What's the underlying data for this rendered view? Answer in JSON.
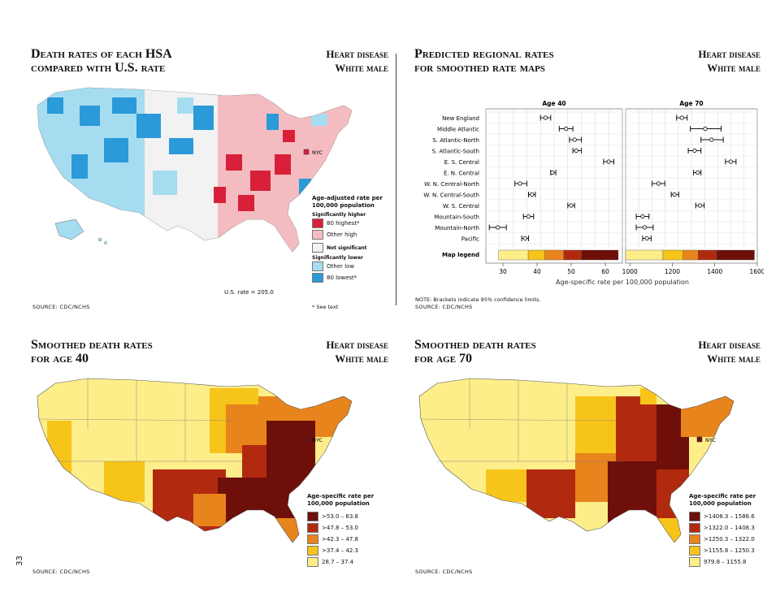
{
  "page_number": "33",
  "panels": {
    "tl": {
      "title_line1": "Death rates of each HSA",
      "title_line2": "compared with U.S. rate",
      "disease": "Heart disease",
      "group": "White male",
      "nyc_label": "NYC",
      "legend_title": "Age-adjusted rate per 100,000 population",
      "legend_sig_higher": "Significantly higher",
      "legend_items_higher": [
        {
          "label": "80 highest*",
          "color": "#d8203a"
        },
        {
          "label": "Other high",
          "color": "#f4bcc0"
        }
      ],
      "legend_not_sig": {
        "label": "Not significant",
        "color": "#f2f2f2"
      },
      "legend_sig_lower": "Significantly lower",
      "legend_items_lower": [
        {
          "label": "Other low",
          "color": "#a6dcef"
        },
        {
          "label": "80 lowest*",
          "color": "#2a9ad8"
        }
      ],
      "us_rate": "U.S. rate = 205.0",
      "footnote": "* See text",
      "source": "SOURCE: CDC/NCHS"
    },
    "tr": {
      "title_line1": "Predicted regional rates",
      "title_line2": "for smoothed rate maps",
      "disease": "Heart disease",
      "group": "White male",
      "note": "NOTE: Brackets indicate 95% confidence limits.",
      "source": "SOURCE: CDC/NCHS"
    },
    "bl": {
      "title_line1": "Smoothed death rates",
      "title_line2": "for age 40",
      "disease": "Heart disease",
      "group": "White male",
      "nyc_label": "NYC",
      "legend_title": "Age-specific rate per 100,000 population",
      "legend_items": [
        {
          "label": ">53.0 – 63.8",
          "color": "#6e0f0a"
        },
        {
          "label": ">47.8 – 53.0",
          "color": "#b12a10"
        },
        {
          "label": ">42.3 – 47.8",
          "color": "#e8841c"
        },
        {
          "label": ">37.4 – 42.3",
          "color": "#f7c41a"
        },
        {
          "label": "28.7 – 37.4",
          "color": "#fdee8a"
        }
      ],
      "source": "SOURCE: CDC/NCHS"
    },
    "br": {
      "title_line1": "Smoothed death rates",
      "title_line2": "for age 70",
      "disease": "Heart disease",
      "group": "White male",
      "nyc_label": "NYC",
      "legend_title": "Age-specific rate per 100,000 population",
      "legend_items": [
        {
          "label": ">1408.3 – 1586.6",
          "color": "#6e0f0a"
        },
        {
          "label": ">1322.0 – 1408.3",
          "color": "#b12a10"
        },
        {
          "label": ">1250.3 – 1322.0",
          "color": "#e8841c"
        },
        {
          "label": ">1155.8 – 1250.3",
          "color": "#f7c41a"
        },
        {
          "label": "979.8 – 1155.8",
          "color": "#fdee8a"
        }
      ],
      "source": "SOURCE: CDC/NCHS"
    }
  },
  "chart_data": {
    "type": "scatter",
    "xlabel": "Age-specific rate per 100,000 population",
    "categories": [
      "New England",
      "Middle Atlantic",
      "S. Atlantic-North",
      "S. Atlantic-South",
      "E. S. Central",
      "E. N. Central",
      "W. N. Central-North",
      "W. N. Central-South",
      "W. S. Central",
      "Mountain-South",
      "Mountain-North",
      "Pacific"
    ],
    "map_legend_label": "Map legend",
    "panels": [
      {
        "title": "Age 40",
        "xlim": [
          25,
          65
        ],
        "xticks": [
          30,
          40,
          50,
          60
        ],
        "points": [
          {
            "value": 42.5,
            "low": 41,
            "high": 44
          },
          {
            "value": 48.5,
            "low": 46.5,
            "high": 50.5
          },
          {
            "value": 51,
            "low": 49.5,
            "high": 53
          },
          {
            "value": 51.5,
            "low": 50.5,
            "high": 53
          },
          {
            "value": 61,
            "low": 59.5,
            "high": 62.5
          },
          {
            "value": 44.5,
            "low": 44,
            "high": 45.5
          },
          {
            "value": 35,
            "low": 33.5,
            "high": 37
          },
          {
            "value": 38.5,
            "low": 37.5,
            "high": 39.5
          },
          {
            "value": 50,
            "low": 49,
            "high": 51
          },
          {
            "value": 37.5,
            "low": 36,
            "high": 39
          },
          {
            "value": 28.5,
            "low": 26,
            "high": 31
          },
          {
            "value": 36.5,
            "low": 35.5,
            "high": 37.5
          }
        ],
        "map_legend_breaks": [
          28.7,
          37.4,
          42.3,
          47.8,
          53.0,
          63.8
        ]
      },
      {
        "title": "Age 70",
        "xlim": [
          980,
          1600
        ],
        "xticks": [
          1000,
          1200,
          1400,
          1600
        ],
        "points": [
          {
            "value": 1245,
            "low": 1220,
            "high": 1270
          },
          {
            "value": 1355,
            "low": 1285,
            "high": 1430
          },
          {
            "value": 1385,
            "low": 1335,
            "high": 1440
          },
          {
            "value": 1305,
            "low": 1275,
            "high": 1335
          },
          {
            "value": 1475,
            "low": 1450,
            "high": 1500
          },
          {
            "value": 1320,
            "low": 1300,
            "high": 1335
          },
          {
            "value": 1135,
            "low": 1105,
            "high": 1165
          },
          {
            "value": 1210,
            "low": 1195,
            "high": 1230
          },
          {
            "value": 1330,
            "low": 1310,
            "high": 1350
          },
          {
            "value": 1060,
            "low": 1030,
            "high": 1090
          },
          {
            "value": 1070,
            "low": 1030,
            "high": 1110
          },
          {
            "value": 1080,
            "low": 1060,
            "high": 1100
          }
        ],
        "map_legend_breaks": [
          979.8,
          1155.8,
          1250.3,
          1322.0,
          1408.3,
          1586.6
        ]
      }
    ],
    "legend_colors": [
      "#fdee8a",
      "#f7c41a",
      "#e8841c",
      "#b12a10",
      "#6e0f0a"
    ]
  }
}
